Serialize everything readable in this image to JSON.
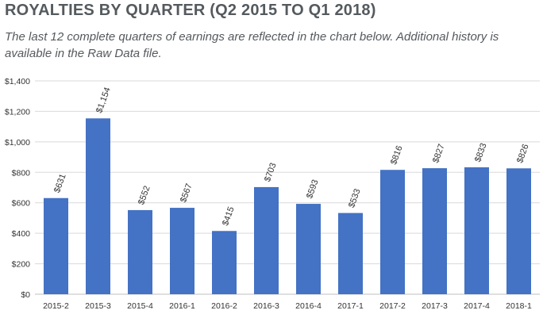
{
  "page": {
    "heading": "ROYALTIES BY QUARTER (Q2 2015 TO Q1 2018)",
    "subheading": "The last 12 complete quarters of earnings are reflected in the chart below. Additional history is available in the Raw Data file."
  },
  "colors": {
    "bar": "#4472c4",
    "gridline": "#d9d9d9",
    "axis": "#bfbfbf",
    "text": "#555a5e"
  },
  "chart_data": {
    "type": "bar",
    "title": "",
    "xlabel": "",
    "ylabel": "",
    "categories": [
      "2015-2",
      "2015-3",
      "2015-4",
      "2016-1",
      "2016-2",
      "2016-3",
      "2016-4",
      "2017-1",
      "2017-2",
      "2017-3",
      "2017-4",
      "2018-1"
    ],
    "values": [
      631,
      1154,
      552,
      567,
      415,
      703,
      593,
      533,
      816,
      827,
      833,
      826
    ],
    "data_labels": [
      "$631",
      "$1,154",
      "$552",
      "$567",
      "$415",
      "$703",
      "$593",
      "$533",
      "$816",
      "$827",
      "$833",
      "$826"
    ],
    "ylim": [
      0,
      1400
    ],
    "yticks": [
      0,
      200,
      400,
      600,
      800,
      1000,
      1200,
      1400
    ],
    "ytick_labels": [
      "$0",
      "$200",
      "$400",
      "$600",
      "$800",
      "$1,000",
      "$1,200",
      "$1,400"
    ],
    "grid": true,
    "legend": "none"
  }
}
